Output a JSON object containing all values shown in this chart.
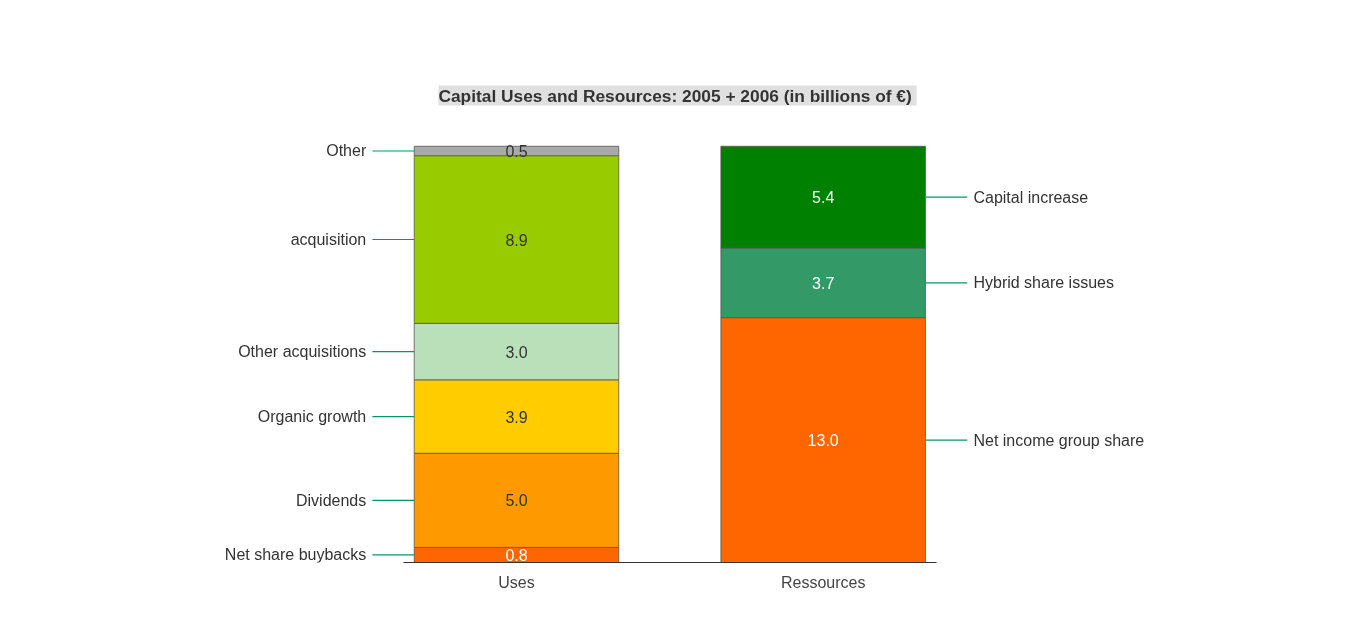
{
  "chart_data": {
    "type": "bar",
    "stacked": true,
    "title": "Capital Uses and Resources:  2005 + 2006 (in billions of €)",
    "categories": [
      "Uses",
      "Ressources"
    ],
    "series": [
      {
        "name": "Net share buybacks",
        "color": "#ff6600",
        "values": [
          0.8,
          null
        ],
        "value_labels": [
          "0.8",
          null
        ]
      },
      {
        "name": "Dividends",
        "color": "#ff9900",
        "values": [
          5.0,
          null
        ],
        "value_labels": [
          "5.0",
          null
        ]
      },
      {
        "name": "Organic growth",
        "color": "#ffcc00",
        "values": [
          3.9,
          null
        ],
        "value_labels": [
          "3.9",
          null
        ]
      },
      {
        "name": "Other acquisitions",
        "color": "#b9e0b9",
        "values": [
          3.0,
          null
        ],
        "value_labels": [
          "3.0",
          null
        ]
      },
      {
        "name": "acquisition",
        "color": "#99cc00",
        "values": [
          8.9,
          null
        ],
        "value_labels": [
          "8.9",
          null
        ]
      },
      {
        "name": "Other",
        "color": "#aaaaaa",
        "values": [
          0.5,
          null
        ],
        "value_labels": [
          "0.5",
          null
        ]
      },
      {
        "name": "Net income group share",
        "color": "#ff6600",
        "values": [
          null,
          13.0
        ],
        "value_labels": [
          null,
          "13.0"
        ]
      },
      {
        "name": "Hybrid share issues",
        "color": "#339966",
        "values": [
          null,
          3.7
        ],
        "value_labels": [
          null,
          "3.7"
        ]
      },
      {
        "name": "Capital increase",
        "color": "#008000",
        "values": [
          null,
          5.4
        ],
        "value_labels": [
          null,
          "5.4"
        ]
      }
    ]
  }
}
